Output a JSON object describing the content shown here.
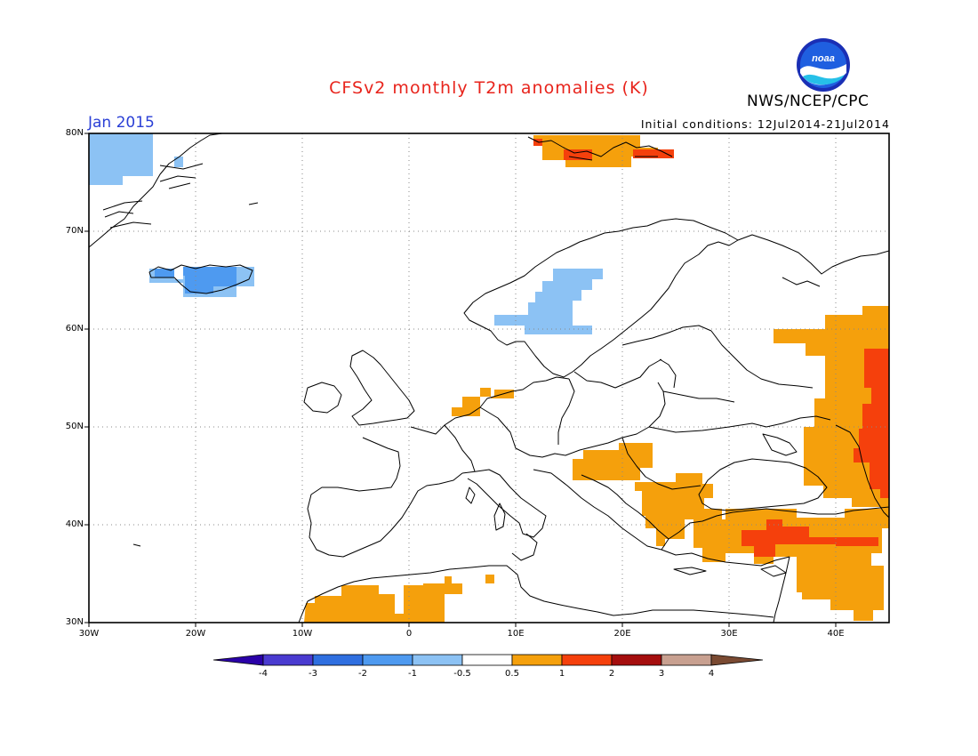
{
  "header": {
    "title": "CFSv2 monthly T2m anomalies (K)",
    "organization": "NWS/NCEP/CPC",
    "month": "Jan 2015",
    "initial_conditions": "Initial conditions: 12Jul2014-21Jul2014",
    "logo_icon": "noaa-logo-icon"
  },
  "map": {
    "lon_range": [
      -30,
      45
    ],
    "lat_range": [
      30,
      80
    ],
    "lat_labels": [
      "80N",
      "70N",
      "60N",
      "50N",
      "40N",
      "30N"
    ],
    "lon_labels": [
      "30W",
      "20W",
      "10W",
      "0",
      "10E",
      "20E",
      "30E",
      "40E"
    ],
    "grid": true,
    "region": "Europe"
  },
  "colorbar": {
    "labels": [
      "-4",
      "-3",
      "-2",
      "-1",
      "-0.5",
      "0.5",
      "1",
      "2",
      "3",
      "4"
    ],
    "colors": [
      "#2a00a8",
      "#4a3bd0",
      "#2f6fe0",
      "#4e9af0",
      "#8cc2f4",
      "#ffffff",
      "#f5a00c",
      "#f5400c",
      "#a50e0e",
      "#c8a090",
      "#7a4a32"
    ]
  },
  "chart_data": {
    "type": "heatmap",
    "title": "CFSv2 monthly T2m anomalies (K)",
    "subtitle": "Jan 2015",
    "xlabel": "",
    "ylabel": "",
    "xlim": [
      -30,
      45
    ],
    "ylim": [
      30,
      80
    ],
    "color_levels": [
      -4,
      -3,
      -2,
      -1,
      -0.5,
      0.5,
      1,
      2,
      3,
      4
    ],
    "regions": [
      {
        "area": "Greenland Sea",
        "lon": [
          -30,
          -24
        ],
        "lat": [
          75,
          80
        ],
        "anomaly_class": "-1 to -0.5"
      },
      {
        "area": "Iceland",
        "lon": [
          -24,
          -14
        ],
        "lat": [
          63,
          66
        ],
        "anomaly_class": "-2 to -1"
      },
      {
        "area": "Sweden/Norway",
        "lon": [
          8,
          18
        ],
        "lat": [
          59.5,
          66
        ],
        "anomaly_class": "-1 to -0.5"
      },
      {
        "area": "Svalbard",
        "lon": [
          12,
          27
        ],
        "lat": [
          77,
          79.5
        ],
        "anomaly_class": "0.5 to 2"
      },
      {
        "area": "Netherlands",
        "lon": [
          4,
          7
        ],
        "lat": [
          51,
          54
        ],
        "anomaly_class": "0.5 to 1"
      },
      {
        "area": "Balkans/Hungary",
        "lon": [
          15,
          25
        ],
        "lat": [
          43,
          47
        ],
        "anomaly_class": "0.5 to 1"
      },
      {
        "area": "Greece/Aegean",
        "lon": [
          22,
          29
        ],
        "lat": [
          36,
          44
        ],
        "anomaly_class": "0.5 to 1"
      },
      {
        "area": "Turkey",
        "lon": [
          27,
          45
        ],
        "lat": [
          36,
          41
        ],
        "anomaly_class": "0.5 to 2"
      },
      {
        "area": "Western Russia",
        "lon": [
          37,
          45
        ],
        "lat": [
          41,
          62
        ],
        "anomaly_class": "0.5 to 2"
      },
      {
        "area": "Middle East",
        "lon": [
          36,
          45
        ],
        "lat": [
          30,
          36
        ],
        "anomaly_class": "0.5 to 1"
      },
      {
        "area": "North Africa",
        "lon": [
          -10,
          4
        ],
        "lat": [
          30,
          34
        ],
        "anomaly_class": "0.5 to 1"
      }
    ]
  }
}
